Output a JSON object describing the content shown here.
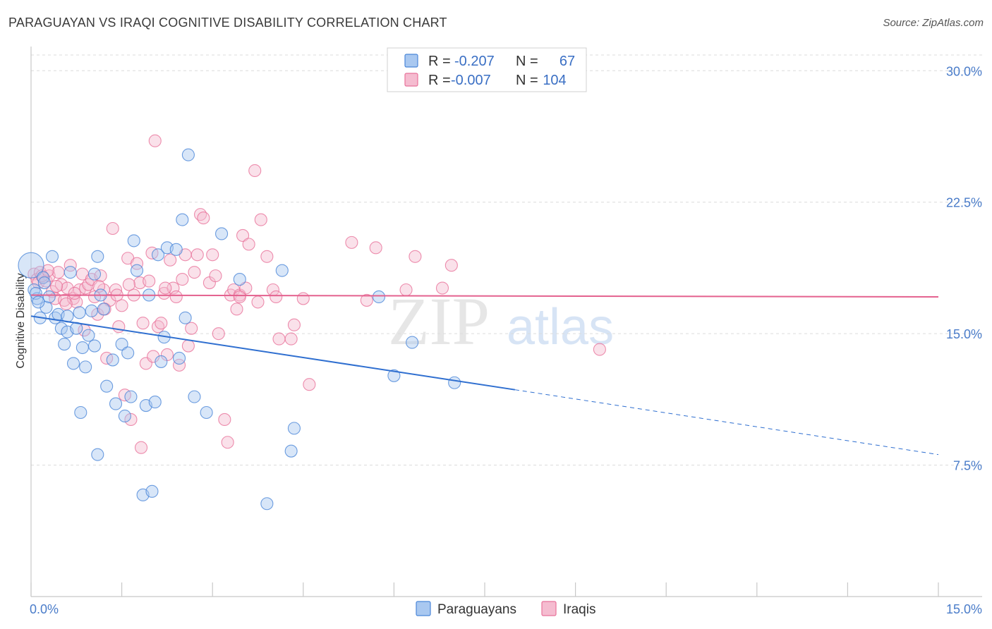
{
  "header": {
    "title": "PARAGUAYAN VS IRAQI COGNITIVE DISABILITY CORRELATION CHART",
    "source": "Source: ZipAtlas.com"
  },
  "watermark": {
    "zip": "ZIP",
    "atlas": "atlas"
  },
  "colors": {
    "paraguayans": "#4a86d8",
    "paraguayans_fill": "#a9c8f0",
    "iraqis": "#e8729a",
    "iraqis_fill": "#f5bcd0",
    "tick_text": "#4a7cc9",
    "grid": "#dcdcdc"
  },
  "legend_top": {
    "rows": [
      {
        "r_label": "R =",
        "r_value": "-0.207",
        "n_label": "N =",
        "n_value": "67"
      },
      {
        "r_label": "R =",
        "r_value": "-0.007",
        "n_label": "N =",
        "n_value": "104"
      }
    ]
  },
  "legend_bottom": {
    "items": [
      "Paraguayans",
      "Iraqis"
    ]
  },
  "chart_data": {
    "type": "scatter",
    "title": "PARAGUAYAN VS IRAQI COGNITIVE DISABILITY CORRELATION CHART",
    "xlabel": "",
    "ylabel": "Cognitive Disability",
    "xlim": [
      0,
      15
    ],
    "ylim": [
      0,
      31.5
    ],
    "x_tick_labels": [
      "0.0%",
      "15.0%"
    ],
    "y_ticks": [
      7.5,
      15.0,
      22.5,
      30.0
    ],
    "y_tick_labels": [
      "7.5%",
      "15.0%",
      "22.5%",
      "30.0%"
    ],
    "grid": "horizontal dashed",
    "series": [
      {
        "name": "Paraguayans",
        "r": -0.207,
        "n": 67,
        "trend": {
          "x0": 0.0,
          "y0": 16.0,
          "x1": 8.0,
          "y1": 11.8,
          "dashed_to_x": 15.0,
          "dashed_to_y": 8.1
        },
        "points": [
          [
            0.0,
            18.9
          ],
          [
            0.05,
            17.5
          ],
          [
            0.1,
            17.0
          ],
          [
            0.15,
            15.9
          ],
          [
            0.2,
            18.2
          ],
          [
            0.25,
            16.5
          ],
          [
            0.3,
            17.1
          ],
          [
            0.35,
            19.4
          ],
          [
            0.4,
            15.9
          ],
          [
            0.45,
            16.1
          ],
          [
            0.5,
            15.3
          ],
          [
            0.55,
            14.4
          ],
          [
            0.6,
            15.1
          ],
          [
            0.65,
            18.5
          ],
          [
            0.7,
            13.3
          ],
          [
            0.75,
            15.3
          ],
          [
            0.8,
            16.2
          ],
          [
            0.85,
            14.2
          ],
          [
            0.9,
            13.1
          ],
          [
            0.95,
            14.9
          ],
          [
            1.0,
            16.3
          ],
          [
            1.05,
            14.3
          ],
          [
            1.1,
            19.4
          ],
          [
            1.15,
            17.2
          ],
          [
            1.2,
            16.4
          ],
          [
            1.25,
            12.0
          ],
          [
            1.35,
            13.5
          ],
          [
            1.4,
            11.0
          ],
          [
            1.5,
            14.4
          ],
          [
            1.55,
            10.3
          ],
          [
            1.6,
            13.9
          ],
          [
            1.65,
            11.4
          ],
          [
            1.7,
            20.3
          ],
          [
            1.75,
            18.6
          ],
          [
            1.85,
            5.8
          ],
          [
            1.9,
            10.9
          ],
          [
            1.95,
            17.2
          ],
          [
            2.0,
            6.0
          ],
          [
            2.05,
            11.1
          ],
          [
            2.1,
            19.5
          ],
          [
            2.15,
            13.4
          ],
          [
            2.2,
            14.8
          ],
          [
            2.25,
            19.9
          ],
          [
            2.4,
            19.8
          ],
          [
            2.45,
            13.6
          ],
          [
            2.5,
            21.5
          ],
          [
            2.55,
            15.9
          ],
          [
            2.6,
            25.2
          ],
          [
            2.7,
            11.4
          ],
          [
            2.9,
            10.5
          ],
          [
            3.15,
            20.7
          ],
          [
            3.45,
            18.1
          ],
          [
            3.9,
            5.3
          ],
          [
            4.15,
            18.6
          ],
          [
            4.3,
            8.3
          ],
          [
            4.35,
            9.6
          ],
          [
            5.75,
            17.1
          ],
          [
            6.0,
            12.6
          ],
          [
            6.3,
            14.5
          ],
          [
            7.0,
            12.2
          ],
          [
            0.08,
            17.3
          ],
          [
            0.12,
            16.8
          ],
          [
            0.22,
            17.9
          ],
          [
            1.1,
            8.1
          ],
          [
            0.82,
            10.5
          ],
          [
            1.05,
            18.4
          ],
          [
            0.6,
            16.0
          ]
        ]
      },
      {
        "name": "Iraqis",
        "r": -0.007,
        "n": 104,
        "trend": {
          "x0": 0.0,
          "y0": 17.2,
          "x1": 15.0,
          "y1": 17.1
        },
        "points": [
          [
            0.05,
            18.4
          ],
          [
            0.1,
            18.1
          ],
          [
            0.12,
            17.9
          ],
          [
            0.15,
            18.5
          ],
          [
            0.2,
            18.2
          ],
          [
            0.25,
            18.0
          ],
          [
            0.3,
            18.3
          ],
          [
            0.35,
            17.4
          ],
          [
            0.4,
            17.0
          ],
          [
            0.45,
            18.5
          ],
          [
            0.5,
            17.8
          ],
          [
            0.55,
            16.9
          ],
          [
            0.6,
            17.6
          ],
          [
            0.65,
            18.9
          ],
          [
            0.7,
            17.0
          ],
          [
            0.75,
            16.8
          ],
          [
            0.8,
            17.5
          ],
          [
            0.85,
            18.4
          ],
          [
            0.9,
            17.6
          ],
          [
            0.95,
            17.8
          ],
          [
            1.0,
            18.1
          ],
          [
            1.05,
            17.1
          ],
          [
            1.1,
            16.1
          ],
          [
            1.15,
            18.3
          ],
          [
            1.2,
            17.5
          ],
          [
            1.25,
            13.6
          ],
          [
            1.3,
            16.9
          ],
          [
            1.35,
            21.0
          ],
          [
            1.4,
            17.5
          ],
          [
            1.45,
            15.4
          ],
          [
            1.5,
            16.6
          ],
          [
            1.55,
            11.5
          ],
          [
            1.6,
            19.3
          ],
          [
            1.65,
            10.1
          ],
          [
            1.7,
            17.2
          ],
          [
            1.75,
            19.0
          ],
          [
            1.8,
            17.9
          ],
          [
            1.85,
            15.6
          ],
          [
            1.9,
            13.3
          ],
          [
            1.95,
            18.0
          ],
          [
            2.0,
            19.6
          ],
          [
            2.05,
            26.0
          ],
          [
            2.1,
            15.4
          ],
          [
            2.15,
            15.6
          ],
          [
            2.2,
            17.3
          ],
          [
            2.25,
            13.8
          ],
          [
            2.3,
            19.2
          ],
          [
            2.35,
            17.6
          ],
          [
            2.4,
            17.1
          ],
          [
            2.45,
            13.2
          ],
          [
            2.5,
            18.1
          ],
          [
            2.55,
            19.5
          ],
          [
            2.6,
            14.3
          ],
          [
            2.65,
            15.3
          ],
          [
            2.7,
            18.5
          ],
          [
            2.75,
            19.5
          ],
          [
            2.8,
            21.8
          ],
          [
            2.85,
            21.6
          ],
          [
            2.95,
            17.9
          ],
          [
            3.0,
            19.5
          ],
          [
            3.05,
            18.3
          ],
          [
            3.1,
            15.0
          ],
          [
            3.2,
            10.1
          ],
          [
            3.25,
            8.8
          ],
          [
            3.3,
            17.2
          ],
          [
            3.35,
            17.5
          ],
          [
            3.4,
            16.4
          ],
          [
            3.45,
            17.2
          ],
          [
            3.5,
            20.6
          ],
          [
            3.55,
            17.6
          ],
          [
            3.6,
            20.1
          ],
          [
            3.7,
            24.3
          ],
          [
            3.75,
            16.8
          ],
          [
            3.8,
            21.5
          ],
          [
            3.9,
            19.4
          ],
          [
            4.0,
            17.5
          ],
          [
            4.05,
            17.1
          ],
          [
            4.1,
            14.7
          ],
          [
            4.3,
            14.7
          ],
          [
            4.35,
            15.5
          ],
          [
            4.5,
            17.0
          ],
          [
            4.6,
            12.1
          ],
          [
            5.3,
            20.2
          ],
          [
            5.7,
            19.9
          ],
          [
            6.2,
            17.5
          ],
          [
            6.35,
            19.4
          ],
          [
            6.8,
            17.6
          ],
          [
            6.95,
            18.9
          ],
          [
            9.4,
            14.1
          ],
          [
            0.18,
            18.3
          ],
          [
            0.28,
            18.6
          ],
          [
            0.42,
            17.7
          ],
          [
            0.58,
            16.7
          ],
          [
            0.72,
            17.3
          ],
          [
            0.88,
            15.2
          ],
          [
            1.12,
            17.7
          ],
          [
            1.22,
            16.4
          ],
          [
            1.42,
            17.2
          ],
          [
            1.62,
            17.8
          ],
          [
            1.82,
            8.5
          ],
          [
            2.02,
            13.7
          ],
          [
            2.22,
            17.6
          ],
          [
            3.45,
            17.1
          ],
          [
            5.55,
            16.9
          ]
        ]
      }
    ]
  }
}
